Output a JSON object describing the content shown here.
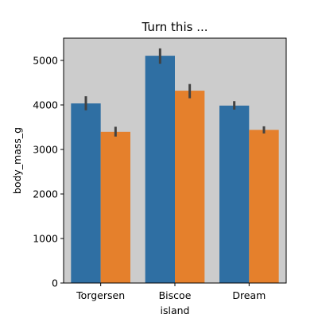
{
  "chart_data": {
    "type": "bar",
    "title": "Turn this ...",
    "xlabel": "island",
    "ylabel": "body_mass_g",
    "categories": [
      "Torgersen",
      "Biscoe",
      "Dream"
    ],
    "ylim": [
      0,
      5500
    ],
    "yticks": [
      0,
      1000,
      2000,
      3000,
      4000,
      5000
    ],
    "grid": false,
    "legend": "none",
    "background": "#cccccc",
    "error_color": "#424242",
    "series": [
      {
        "color": "#2f6fa3",
        "values": [
          4034,
          5105,
          3985
        ],
        "err_low": [
          3880,
          4925,
          3895
        ],
        "err_high": [
          4195,
          5270,
          4085
        ]
      },
      {
        "color": "#e5802c",
        "values": [
          3396,
          4320,
          3440
        ],
        "err_low": [
          3290,
          4150,
          3360
        ],
        "err_high": [
          3510,
          4470,
          3520
        ]
      }
    ]
  }
}
